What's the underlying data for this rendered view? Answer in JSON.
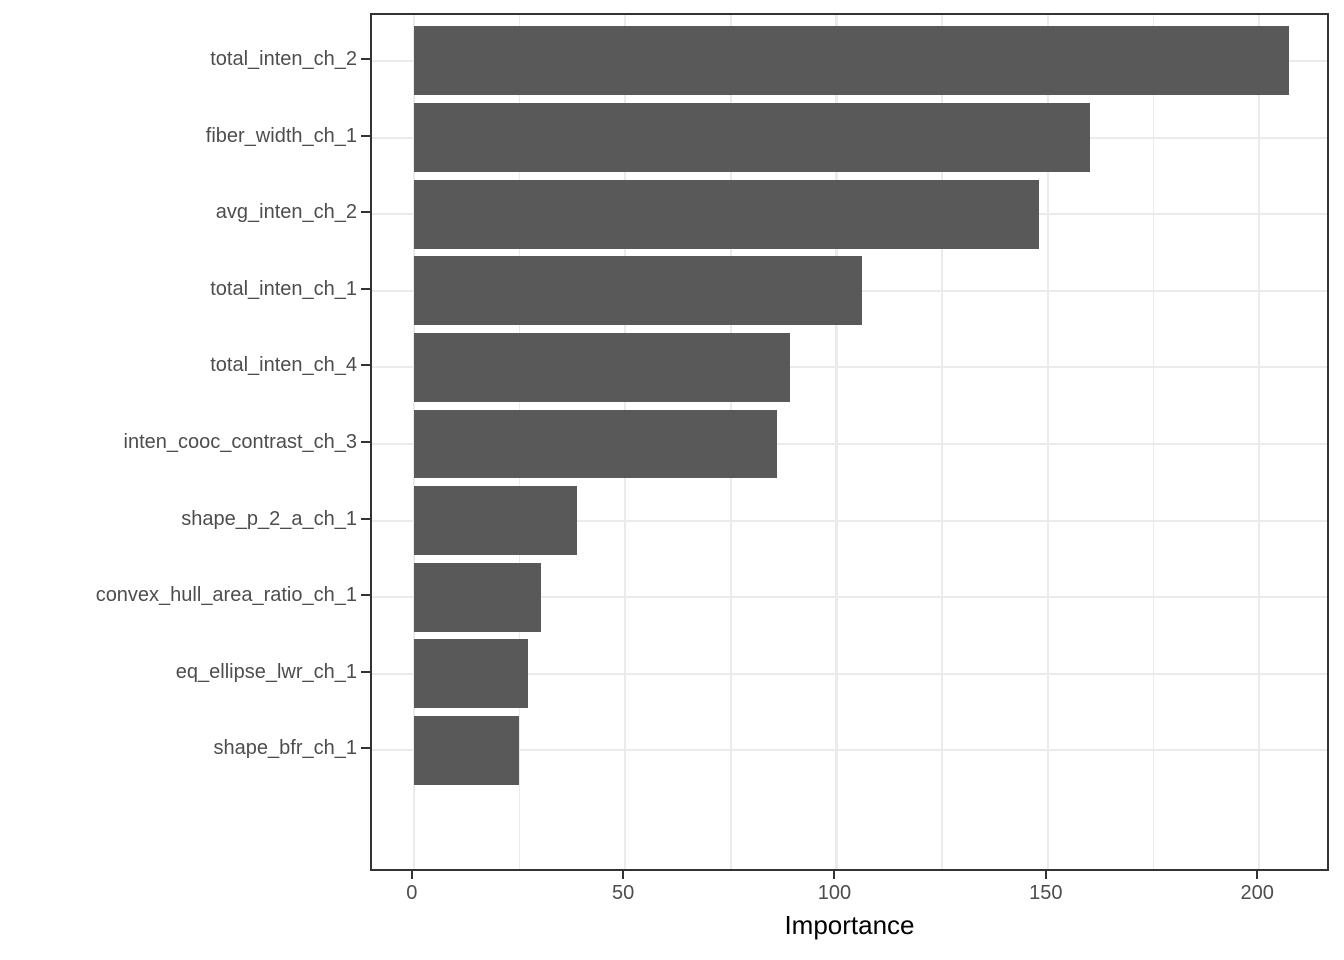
{
  "chart_data": {
    "type": "bar",
    "orientation": "horizontal",
    "title": "",
    "xlabel": "Importance",
    "ylabel": "",
    "categories": [
      "total_inten_ch_2",
      "fiber_width_ch_1",
      "avg_inten_ch_2",
      "total_inten_ch_1",
      "total_inten_ch_4",
      "inten_cooc_contrast_ch_3",
      "shape_p_2_a_ch_1",
      "convex_hull_area_ratio_ch_1",
      "eq_ellipse_lwr_ch_1",
      "shape_bfr_ch_1"
    ],
    "values": [
      207,
      160,
      148,
      106,
      89,
      86,
      38.5,
      30,
      27,
      25
    ],
    "xlim": [
      -9.9,
      217
    ],
    "x_major_ticks": [
      0,
      50,
      100,
      150,
      200
    ],
    "x_minor_ticks": [
      25,
      75,
      125,
      175
    ],
    "grid": "major and minor vertical, major horizontal",
    "legend_position": "none"
  },
  "colors": {
    "bar_fill": "#595959",
    "panel_border": "#333333",
    "grid": "#ebebeb",
    "axis_text": "#4d4d4d",
    "axis_title": "#000000",
    "tick_mark": "#333333",
    "background": "#ffffff"
  }
}
